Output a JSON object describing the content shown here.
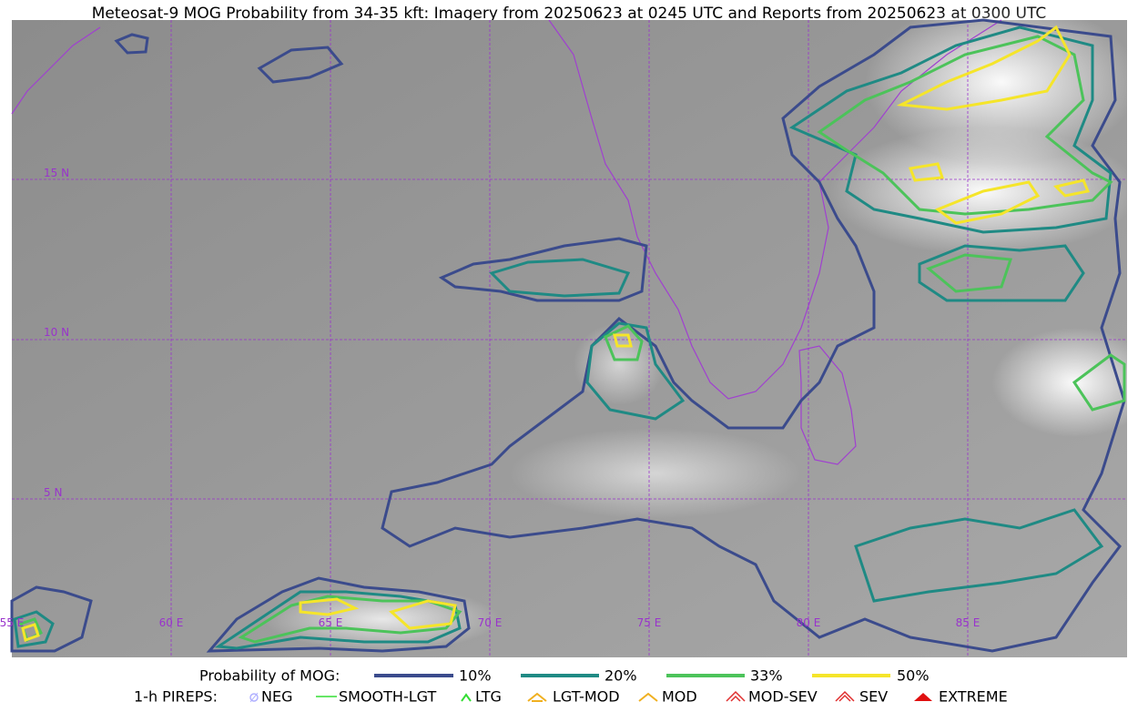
{
  "header": {
    "title": "Meteosat-9 MOG Probability from 34-35 kft: Imagery from 20250623 at 0245 UTC and Reports from 20250623 at 0300 UTC"
  },
  "map": {
    "lat_labels": [
      "15 N",
      "10 N",
      "5 N"
    ],
    "lon_labels": [
      "55 E",
      "60 E",
      "65 E",
      "70 E",
      "75 E",
      "80 E",
      "85 E"
    ]
  },
  "legend": {
    "probability": {
      "title": "Probability of MOG:",
      "items": [
        "10%",
        "20%",
        "33%",
        "50%"
      ]
    },
    "pireps": {
      "title": "1-h PIREPS:",
      "items": [
        "NEG",
        "SMOOTH-LGT",
        "LTG",
        "LGT-MOD",
        "MOD",
        "MOD-SEV",
        "SEV",
        "EXTREME"
      ]
    }
  }
}
